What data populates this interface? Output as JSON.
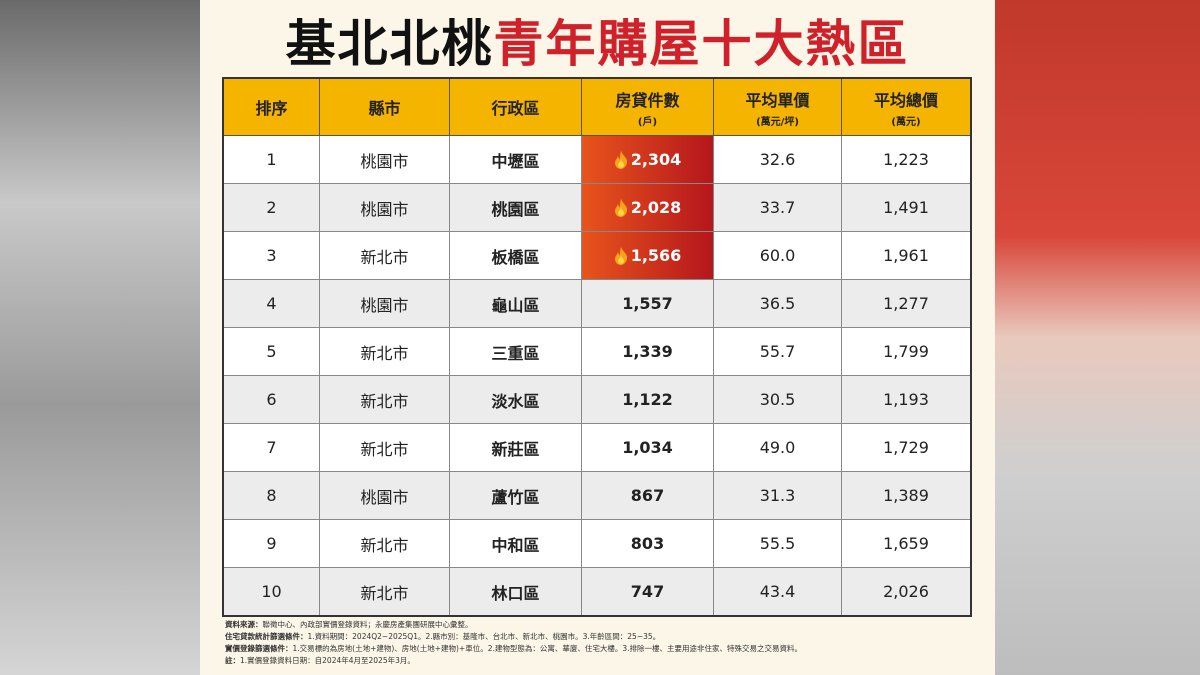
{
  "header": {
    "title_black": "基北北桃",
    "title_red": "青年購屋十大熱區"
  },
  "table": {
    "columns": [
      {
        "label": "排序"
      },
      {
        "label": "縣市"
      },
      {
        "label": "行政區"
      },
      {
        "label": "房貸件數",
        "unit": "(戶)"
      },
      {
        "label": "平均單價",
        "unit": "(萬元/坪)"
      },
      {
        "label": "平均總價",
        "unit": "(萬元)"
      }
    ],
    "rows": [
      [
        "1",
        "桃園市",
        "中壢區",
        "2,304",
        "32.6",
        "1,223"
      ],
      [
        "2",
        "桃園市",
        "桃園區",
        "2,028",
        "33.7",
        "1,491"
      ],
      [
        "3",
        "新北市",
        "板橋區",
        "1,566",
        "60.0",
        "1,961"
      ],
      [
        "4",
        "桃園市",
        "龜山區",
        "1,557",
        "36.5",
        "1,277"
      ],
      [
        "5",
        "新北市",
        "三重區",
        "1,339",
        "55.7",
        "1,799"
      ],
      [
        "6",
        "新北市",
        "淡水區",
        "1,122",
        "30.5",
        "1,193"
      ],
      [
        "7",
        "新北市",
        "新莊區",
        "1,034",
        "49.0",
        "1,729"
      ],
      [
        "8",
        "桃園市",
        "蘆竹區",
        "867",
        "31.3",
        "1,389"
      ],
      [
        "9",
        "新北市",
        "中和區",
        "803",
        "55.5",
        "1,659"
      ],
      [
        "10",
        "新北市",
        "林口區",
        "747",
        "43.4",
        "2,026"
      ]
    ]
  },
  "notes": [
    {
      "label": "資料來源：",
      "text": "聯徵中心、內政部實價登錄資料；永慶房產集團研展中心彙整。"
    },
    {
      "label": "住宅貸款統計篩選條件：",
      "text": "1.資料期間：2024Q2~2025Q1。2.縣市別：基隆市、台北市、新北市、桃園市。3.年齡區間：25~35。"
    },
    {
      "label": "實價登錄篩選條件：",
      "text": "1.交易標的為房地(土地+建物)、房地(土地+建物)+車位。2.建物型態為：公寓、華廈、住宅大樓。3.排除一樓、主要用途非住家、特殊交易之交易資料。"
    },
    {
      "label": "註：",
      "text": "1.實價登錄資料日期：自2024年4月至2025年3月。"
    }
  ]
}
